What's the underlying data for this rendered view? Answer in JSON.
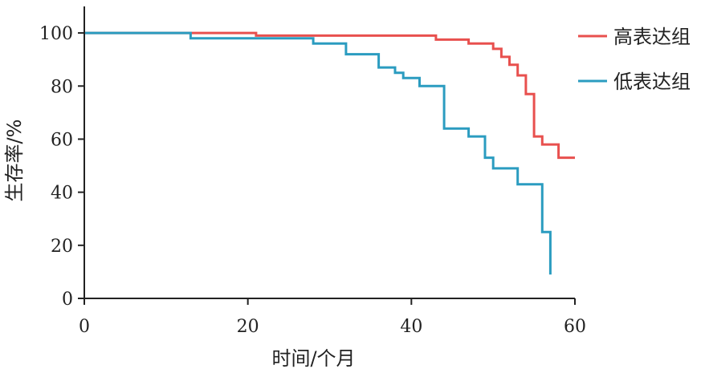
{
  "chart_data": {
    "type": "line",
    "step": true,
    "title": "",
    "xlabel": "时间/个月",
    "ylabel": "生存率/%",
    "xlim": [
      0,
      60
    ],
    "ylim": [
      0,
      110
    ],
    "xticks": [
      "0",
      "20",
      "40",
      "60"
    ],
    "yticks": [
      "0",
      "20",
      "40",
      "60",
      "80",
      "100"
    ],
    "grid": false,
    "legend_position": "top-right",
    "series": [
      {
        "name": "高表达组",
        "color": "#e8504e",
        "points": [
          [
            0,
            100
          ],
          [
            21,
            100
          ],
          [
            21,
            99
          ],
          [
            43,
            99
          ],
          [
            43,
            97.5
          ],
          [
            47,
            97.5
          ],
          [
            47,
            96
          ],
          [
            50,
            96
          ],
          [
            50,
            94
          ],
          [
            51,
            94
          ],
          [
            51,
            91
          ],
          [
            52,
            91
          ],
          [
            52,
            88
          ],
          [
            53,
            88
          ],
          [
            53,
            84
          ],
          [
            54,
            84
          ],
          [
            54,
            77
          ],
          [
            55,
            77
          ],
          [
            55,
            61
          ],
          [
            56,
            61
          ],
          [
            56,
            58
          ],
          [
            58,
            58
          ],
          [
            58,
            53
          ],
          [
            60,
            53
          ]
        ]
      },
      {
        "name": "低表达组",
        "color": "#2b9cc0",
        "points": [
          [
            0,
            100
          ],
          [
            13,
            100
          ],
          [
            13,
            98
          ],
          [
            28,
            98
          ],
          [
            28,
            96
          ],
          [
            32,
            96
          ],
          [
            32,
            92
          ],
          [
            36,
            92
          ],
          [
            36,
            87
          ],
          [
            38,
            87
          ],
          [
            38,
            85
          ],
          [
            39,
            85
          ],
          [
            39,
            83
          ],
          [
            41,
            83
          ],
          [
            41,
            80
          ],
          [
            44,
            80
          ],
          [
            44,
            64
          ],
          [
            47,
            64
          ],
          [
            47,
            61
          ],
          [
            49,
            61
          ],
          [
            49,
            53
          ],
          [
            50,
            53
          ],
          [
            50,
            49
          ],
          [
            53,
            49
          ],
          [
            53,
            43
          ],
          [
            56,
            43
          ],
          [
            56,
            25
          ],
          [
            57,
            25
          ],
          [
            57,
            9
          ]
        ]
      }
    ]
  }
}
